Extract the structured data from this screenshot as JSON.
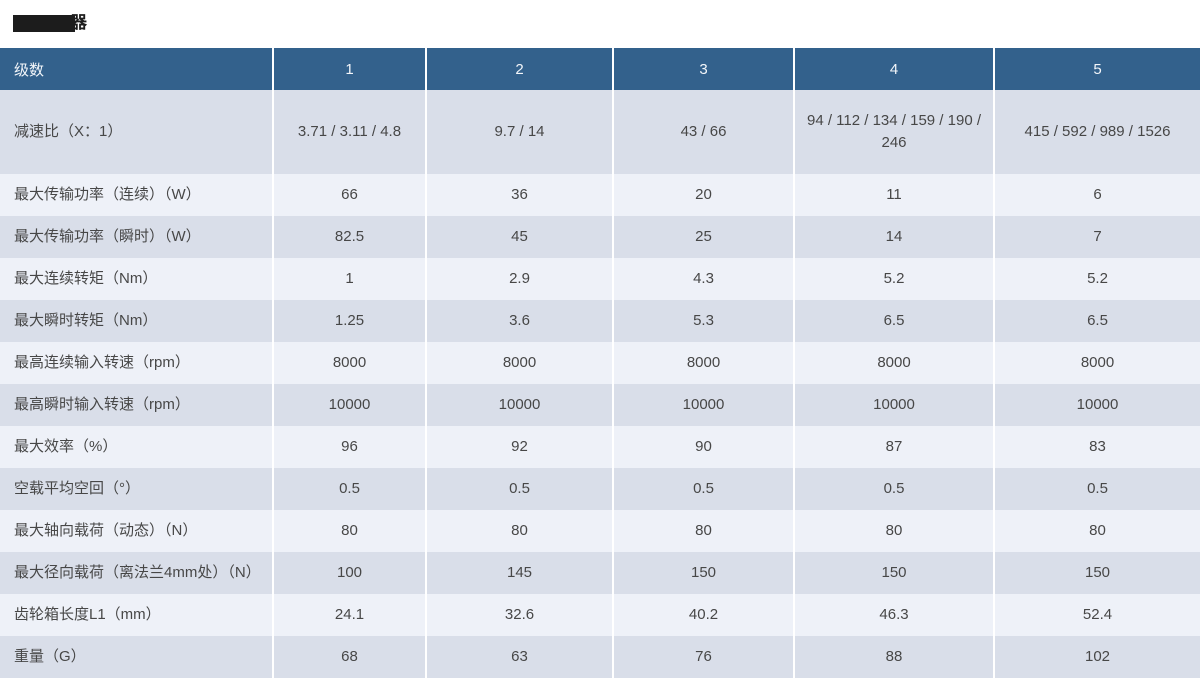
{
  "page": {
    "title": {
      "visible_fragment": "器",
      "redacted": true,
      "redaction_color": "#1c1c1c"
    }
  },
  "table": {
    "header": {
      "label": "级数",
      "columns": [
        "1",
        "2",
        "3",
        "4",
        "5"
      ]
    },
    "rows": [
      {
        "label": "减速比（X：1）",
        "values": [
          "3.71 / 3.11 / 4.8",
          "9.7 / 14",
          "43 / 66",
          "94 / 112 / 134 / 159 / 190 / 246",
          "415 / 592 / 989 / 1526"
        ]
      },
      {
        "label": "最大传输功率（连续）（W）",
        "values": [
          "66",
          "36",
          "20",
          "11",
          "6"
        ]
      },
      {
        "label": "最大传输功率（瞬时）（W）",
        "values": [
          "82.5",
          "45",
          "25",
          "14",
          "7"
        ]
      },
      {
        "label": "最大连续转矩（Nm）",
        "values": [
          "1",
          "2.9",
          "4.3",
          "5.2",
          "5.2"
        ]
      },
      {
        "label": "最大瞬时转矩（Nm）",
        "values": [
          "1.25",
          "3.6",
          "5.3",
          "6.5",
          "6.5"
        ]
      },
      {
        "label": "最高连续输入转速（rpm）",
        "values": [
          "8000",
          "8000",
          "8000",
          "8000",
          "8000"
        ]
      },
      {
        "label": "最高瞬时输入转速（rpm）",
        "values": [
          "10000",
          "10000",
          "10000",
          "10000",
          "10000"
        ]
      },
      {
        "label": "最大效率（%）",
        "values": [
          "96",
          "92",
          "90",
          "87",
          "83"
        ]
      },
      {
        "label": "空载平均空回（°）",
        "values": [
          "0.5",
          "0.5",
          "0.5",
          "0.5",
          "0.5"
        ]
      },
      {
        "label": "最大轴向载荷（动态）（N）",
        "values": [
          "80",
          "80",
          "80",
          "80",
          "80"
        ]
      },
      {
        "label": "最大径向载荷（离法兰4mm处）（N）",
        "values": [
          "100",
          "145",
          "150",
          "150",
          "150"
        ]
      },
      {
        "label": "齿轮箱长度L1（mm）",
        "values": [
          "24.1",
          "32.6",
          "40.2",
          "46.3",
          "52.4"
        ]
      },
      {
        "label": "重量（G）",
        "values": [
          "68",
          "63",
          "76",
          "88",
          "102"
        ]
      }
    ],
    "colors": {
      "header_bg": "#33618c",
      "header_text": "#f3f6fa",
      "row_dark": "#d9dee9",
      "row_light": "#eef1f8",
      "cell_text": "#474747",
      "divider": "#ffffff"
    }
  }
}
